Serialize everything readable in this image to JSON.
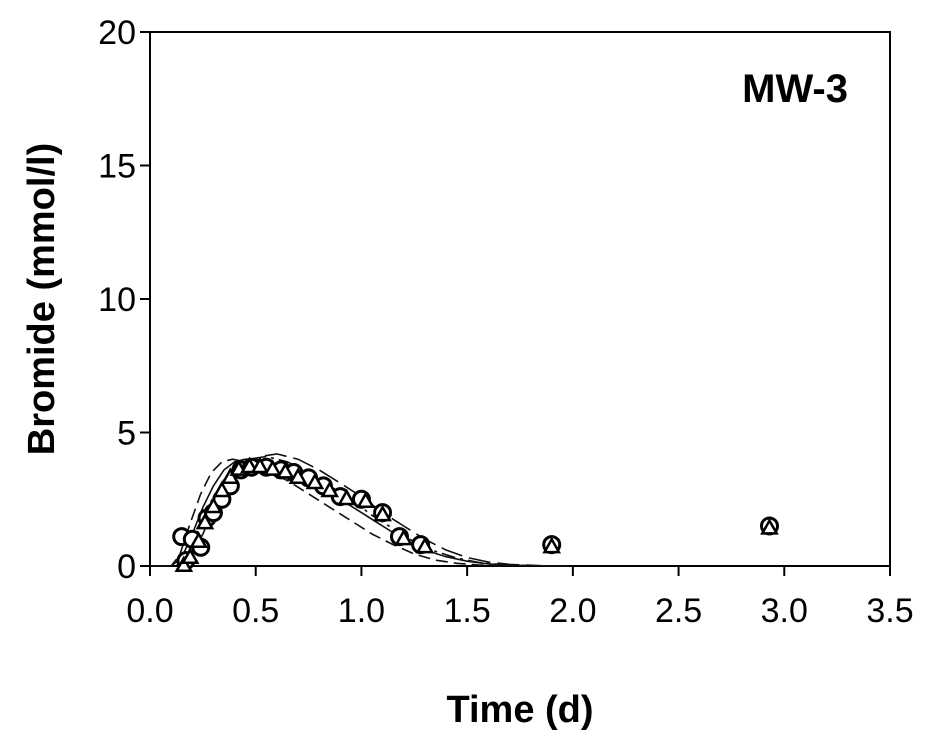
{
  "chart_data": {
    "type": "scatter",
    "title": "",
    "panel_label": "MW-3",
    "xlabel": "Time (d)",
    "ylabel": "Bromide (mmol/l)",
    "xlim": [
      0,
      3.5
    ],
    "ylim": [
      0,
      20
    ],
    "x_ticks": [
      0,
      0.5,
      1,
      1.5,
      2,
      2.5,
      3,
      3.5
    ],
    "x_tick_labels": [
      "0.0",
      "0.5",
      "1.0",
      "1.5",
      "2.0",
      "2.5",
      "3.0",
      "3.5"
    ],
    "y_ticks": [
      0,
      5,
      10,
      15,
      20
    ],
    "y_tick_labels": [
      "0",
      "5",
      "10",
      "15",
      "20"
    ],
    "grid": false,
    "legend": "none",
    "series": [
      {
        "marker": "circle",
        "points": [
          [
            0.15,
            1.1
          ],
          [
            0.17,
            0.2
          ],
          [
            0.2,
            1.0
          ],
          [
            0.24,
            0.7
          ],
          [
            0.27,
            1.8
          ],
          [
            0.3,
            2.0
          ],
          [
            0.34,
            2.5
          ],
          [
            0.38,
            3.0
          ],
          [
            0.43,
            3.6
          ],
          [
            0.48,
            3.7
          ],
          [
            0.55,
            3.7
          ],
          [
            0.62,
            3.6
          ],
          [
            0.68,
            3.5
          ],
          [
            0.75,
            3.3
          ],
          [
            0.82,
            3.0
          ],
          [
            0.9,
            2.6
          ],
          [
            1.0,
            2.5
          ],
          [
            1.1,
            2.0
          ],
          [
            1.18,
            1.1
          ],
          [
            1.28,
            0.8
          ],
          [
            1.9,
            0.8
          ],
          [
            2.93,
            1.5
          ]
        ]
      },
      {
        "marker": "triangle",
        "points": [
          [
            0.16,
            0.0
          ],
          [
            0.19,
            0.3
          ],
          [
            0.23,
            0.9
          ],
          [
            0.26,
            1.6
          ],
          [
            0.3,
            2.2
          ],
          [
            0.34,
            2.8
          ],
          [
            0.38,
            3.3
          ],
          [
            0.42,
            3.6
          ],
          [
            0.47,
            3.7
          ],
          [
            0.52,
            3.7
          ],
          [
            0.58,
            3.6
          ],
          [
            0.64,
            3.5
          ],
          [
            0.7,
            3.3
          ],
          [
            0.78,
            3.1
          ],
          [
            0.85,
            2.8
          ],
          [
            0.93,
            2.5
          ],
          [
            1.02,
            2.4
          ],
          [
            1.1,
            1.9
          ],
          [
            1.2,
            1.0
          ],
          [
            1.3,
            0.7
          ],
          [
            1.9,
            0.7
          ],
          [
            2.93,
            1.4
          ]
        ]
      },
      {
        "line": "solid",
        "points": [
          [
            0.0,
            0.0
          ],
          [
            0.1,
            0.0
          ],
          [
            0.15,
            0.3
          ],
          [
            0.2,
            1.2
          ],
          [
            0.25,
            2.2
          ],
          [
            0.3,
            3.0
          ],
          [
            0.35,
            3.6
          ],
          [
            0.4,
            3.9
          ],
          [
            0.45,
            4.0
          ],
          [
            0.5,
            4.0
          ],
          [
            0.6,
            3.8
          ],
          [
            0.7,
            3.4
          ],
          [
            0.8,
            3.0
          ],
          [
            0.9,
            2.5
          ],
          [
            1.0,
            2.0
          ],
          [
            1.1,
            1.5
          ],
          [
            1.2,
            1.0
          ],
          [
            1.3,
            0.6
          ],
          [
            1.4,
            0.35
          ],
          [
            1.5,
            0.18
          ],
          [
            1.6,
            0.08
          ],
          [
            1.7,
            0.03
          ],
          [
            1.8,
            0.01
          ],
          [
            1.95,
            0.0
          ]
        ]
      },
      {
        "line": "dashed",
        "points": [
          [
            0.0,
            0.0
          ],
          [
            0.1,
            0.0
          ],
          [
            0.14,
            0.4
          ],
          [
            0.19,
            1.6
          ],
          [
            0.24,
            2.7
          ],
          [
            0.29,
            3.5
          ],
          [
            0.34,
            3.9
          ],
          [
            0.39,
            4.0
          ],
          [
            0.45,
            3.9
          ],
          [
            0.55,
            3.6
          ],
          [
            0.65,
            3.2
          ],
          [
            0.75,
            2.7
          ],
          [
            0.85,
            2.2
          ],
          [
            0.95,
            1.7
          ],
          [
            1.05,
            1.2
          ],
          [
            1.15,
            0.8
          ],
          [
            1.25,
            0.45
          ],
          [
            1.35,
            0.22
          ],
          [
            1.45,
            0.1
          ],
          [
            1.55,
            0.04
          ],
          [
            1.7,
            0.0
          ]
        ]
      },
      {
        "line": "dash-dot",
        "points": [
          [
            0.0,
            0.0
          ],
          [
            0.12,
            0.0
          ],
          [
            0.17,
            0.3
          ],
          [
            0.22,
            1.2
          ],
          [
            0.28,
            2.3
          ],
          [
            0.34,
            3.1
          ],
          [
            0.4,
            3.7
          ],
          [
            0.47,
            4.0
          ],
          [
            0.55,
            4.1
          ],
          [
            0.65,
            3.9
          ],
          [
            0.75,
            3.5
          ],
          [
            0.85,
            3.0
          ],
          [
            0.95,
            2.5
          ],
          [
            1.05,
            1.9
          ],
          [
            1.15,
            1.4
          ],
          [
            1.25,
            0.9
          ],
          [
            1.35,
            0.55
          ],
          [
            1.45,
            0.3
          ],
          [
            1.55,
            0.14
          ],
          [
            1.65,
            0.06
          ],
          [
            1.8,
            0.01
          ],
          [
            1.95,
            0.0
          ]
        ]
      },
      {
        "line": "long-dash",
        "points": [
          [
            0.0,
            0.0
          ],
          [
            0.14,
            0.0
          ],
          [
            0.19,
            0.3
          ],
          [
            0.25,
            1.2
          ],
          [
            0.31,
            2.3
          ],
          [
            0.38,
            3.2
          ],
          [
            0.45,
            3.8
          ],
          [
            0.52,
            4.1
          ],
          [
            0.6,
            4.2
          ],
          [
            0.7,
            4.0
          ],
          [
            0.8,
            3.6
          ],
          [
            0.9,
            3.1
          ],
          [
            1.0,
            2.6
          ],
          [
            1.1,
            2.0
          ],
          [
            1.2,
            1.5
          ],
          [
            1.3,
            1.0
          ],
          [
            1.4,
            0.6
          ],
          [
            1.5,
            0.32
          ],
          [
            1.6,
            0.15
          ],
          [
            1.7,
            0.06
          ],
          [
            1.85,
            0.01
          ],
          [
            1.98,
            0.0
          ]
        ]
      }
    ]
  }
}
